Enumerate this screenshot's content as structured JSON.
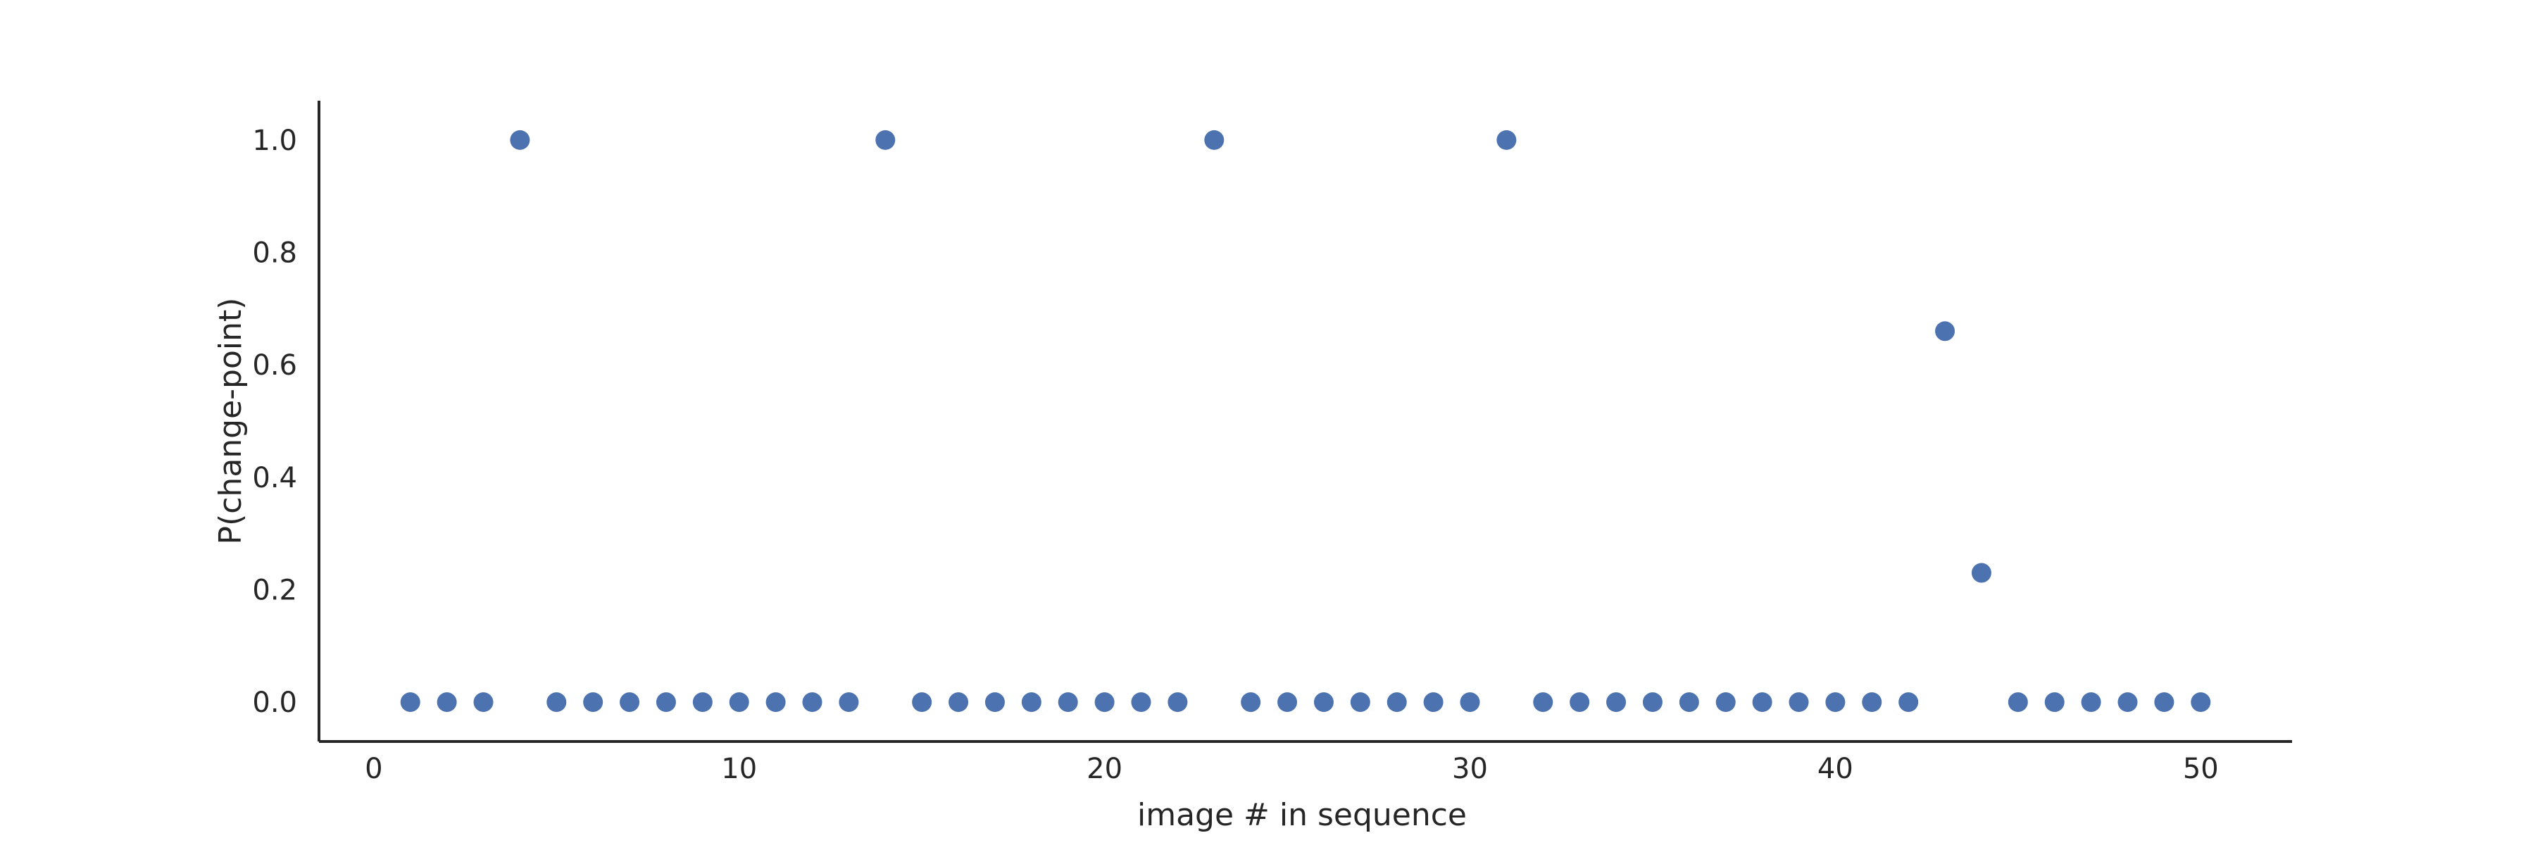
{
  "colors": {
    "marker": "#4C72B0",
    "axis": "#262626",
    "background": "#ffffff"
  },
  "chart_data": {
    "type": "scatter",
    "title": "",
    "xlabel": "image # in sequence",
    "ylabel": "P(change-point)",
    "xlim": [
      -1.5,
      52.5
    ],
    "ylim": [
      -0.07,
      1.07
    ],
    "xticks": [
      0,
      10,
      20,
      30,
      40,
      50
    ],
    "yticks": [
      0.0,
      0.2,
      0.4,
      0.6,
      0.8,
      1.0
    ],
    "xtick_labels": [
      "0",
      "10",
      "20",
      "30",
      "40",
      "50"
    ],
    "ytick_labels": [
      "0.0",
      "0.2",
      "0.4",
      "0.6",
      "0.8",
      "1.0"
    ],
    "grid": false,
    "legend": "none",
    "series": [
      {
        "x": [
          1,
          2,
          3,
          4,
          5,
          6,
          7,
          8,
          9,
          10,
          11,
          12,
          13,
          14,
          15,
          16,
          17,
          18,
          19,
          20,
          21,
          22,
          23,
          24,
          25,
          26,
          27,
          28,
          29,
          30,
          31,
          32,
          33,
          34,
          35,
          36,
          37,
          38,
          39,
          40,
          41,
          42,
          43,
          44,
          45,
          46,
          47,
          48,
          49,
          50
        ],
        "y": [
          0,
          0,
          0,
          1.0,
          0,
          0,
          0,
          0,
          0,
          0,
          0,
          0,
          0,
          1.0,
          0,
          0,
          0,
          0,
          0,
          0,
          0,
          0,
          1.0,
          0,
          0,
          0,
          0,
          0,
          0,
          0,
          1.0,
          0,
          0,
          0,
          0,
          0,
          0,
          0,
          0,
          0,
          0,
          0,
          0.66,
          0.23,
          0,
          0,
          0,
          0,
          0,
          0
        ]
      }
    ]
  }
}
